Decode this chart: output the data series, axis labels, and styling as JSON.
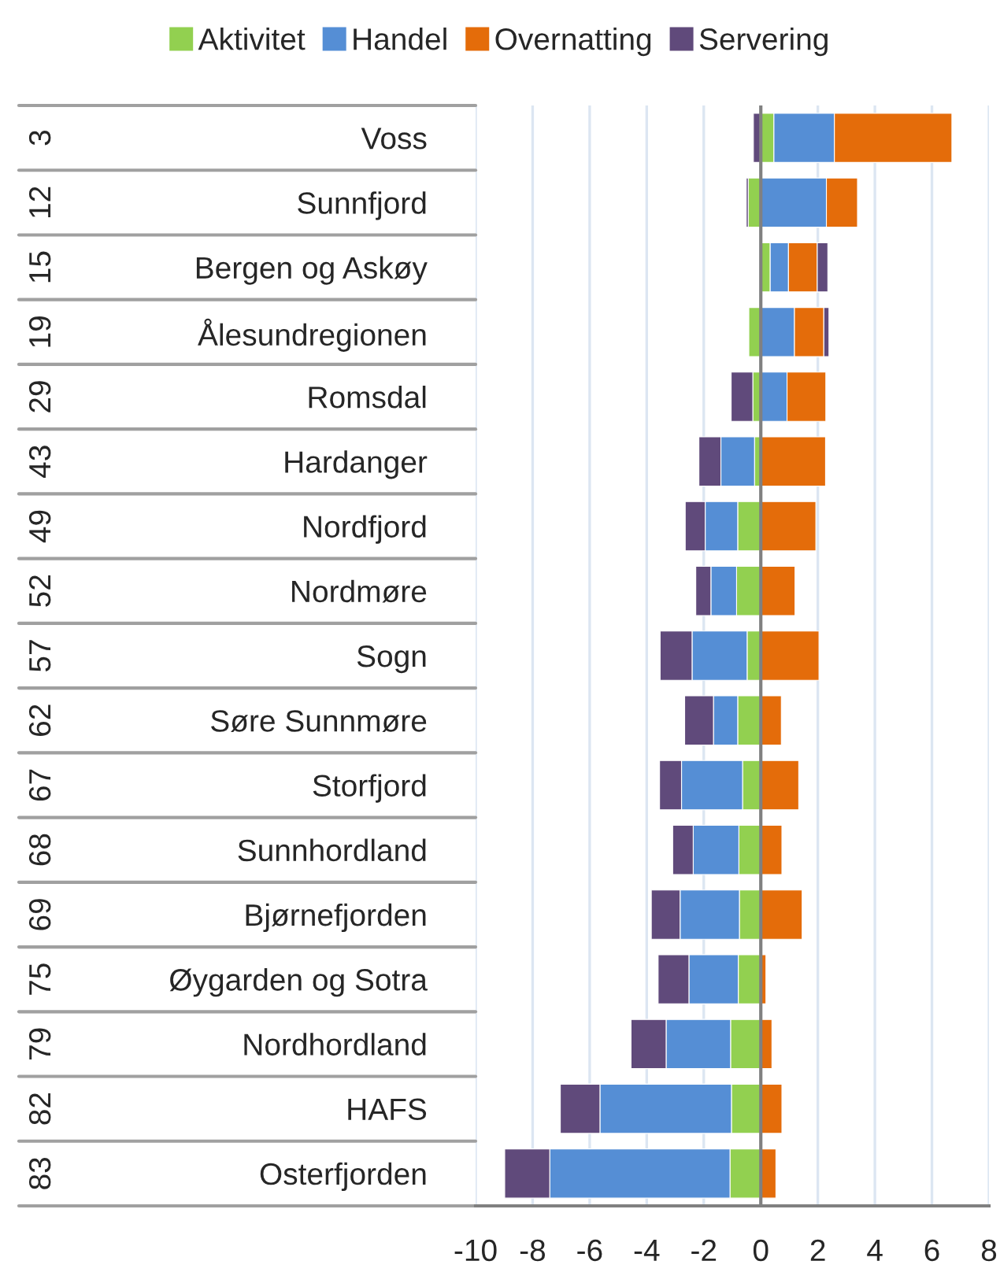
{
  "chart_data": {
    "type": "bar",
    "orientation": "horizontal",
    "stacked": true,
    "categories": [
      "Voss",
      "Sunnfjord",
      "Bergen og Askøy",
      "Ålesundregionen",
      "Romsdal",
      "Hardanger",
      "Nordfjord",
      "Nordmøre",
      "Sogn",
      "Søre Sunnmøre",
      "Storfjord",
      "Sunnhordland",
      "Bjørnefjorden",
      "Øygarden og Sotra",
      "Nordhordland",
      "HAFS",
      "Osterfjorden"
    ],
    "series": [
      {
        "name": "Aktivitet",
        "color": "#92d050",
        "values": [
          0.46,
          -0.44,
          0.33,
          -0.42,
          -0.28,
          -0.22,
          -0.81,
          -0.85,
          -0.48,
          -0.81,
          -0.64,
          -0.77,
          -0.75,
          -0.79,
          -1.06,
          -1.03,
          -1.08
        ]
      },
      {
        "name": "Handel",
        "color": "#558ed5",
        "values": [
          2.12,
          2.3,
          0.64,
          1.18,
          0.92,
          -1.18,
          -1.14,
          -0.9,
          -1.93,
          -0.85,
          -2.14,
          -1.6,
          -2.08,
          -1.73,
          -2.26,
          -4.61,
          -6.32
        ]
      },
      {
        "name": "Overnatting",
        "color": "#e46c0a",
        "values": [
          4.12,
          1.09,
          1.01,
          1.03,
          1.36,
          2.27,
          1.93,
          1.2,
          2.04,
          0.72,
          1.33,
          0.74,
          1.45,
          0.18,
          0.39,
          0.74,
          0.53
        ]
      },
      {
        "name": "Servering",
        "color": "#604a7b",
        "values": [
          -0.26,
          -0.07,
          0.37,
          0.18,
          -0.76,
          -0.77,
          -0.7,
          -0.53,
          -1.12,
          -1.01,
          -0.77,
          -0.72,
          -1.01,
          -1.08,
          -1.23,
          -1.39,
          -1.58
        ]
      }
    ],
    "xlim": [
      -10,
      8
    ],
    "xticks": [
      -10,
      -8,
      -6,
      -4,
      -2,
      0,
      2,
      4,
      6,
      8
    ],
    "grid": "x",
    "legend": "top",
    "ref_lines": [
      {
        "axis": "x",
        "value": 0,
        "color": "#808080"
      }
    ],
    "annotations": [
      "3",
      "12",
      "15",
      "19",
      "29",
      "43",
      "49",
      "52",
      "57",
      "62",
      "67",
      "68",
      "69",
      "75",
      "79",
      "82",
      "83"
    ]
  }
}
